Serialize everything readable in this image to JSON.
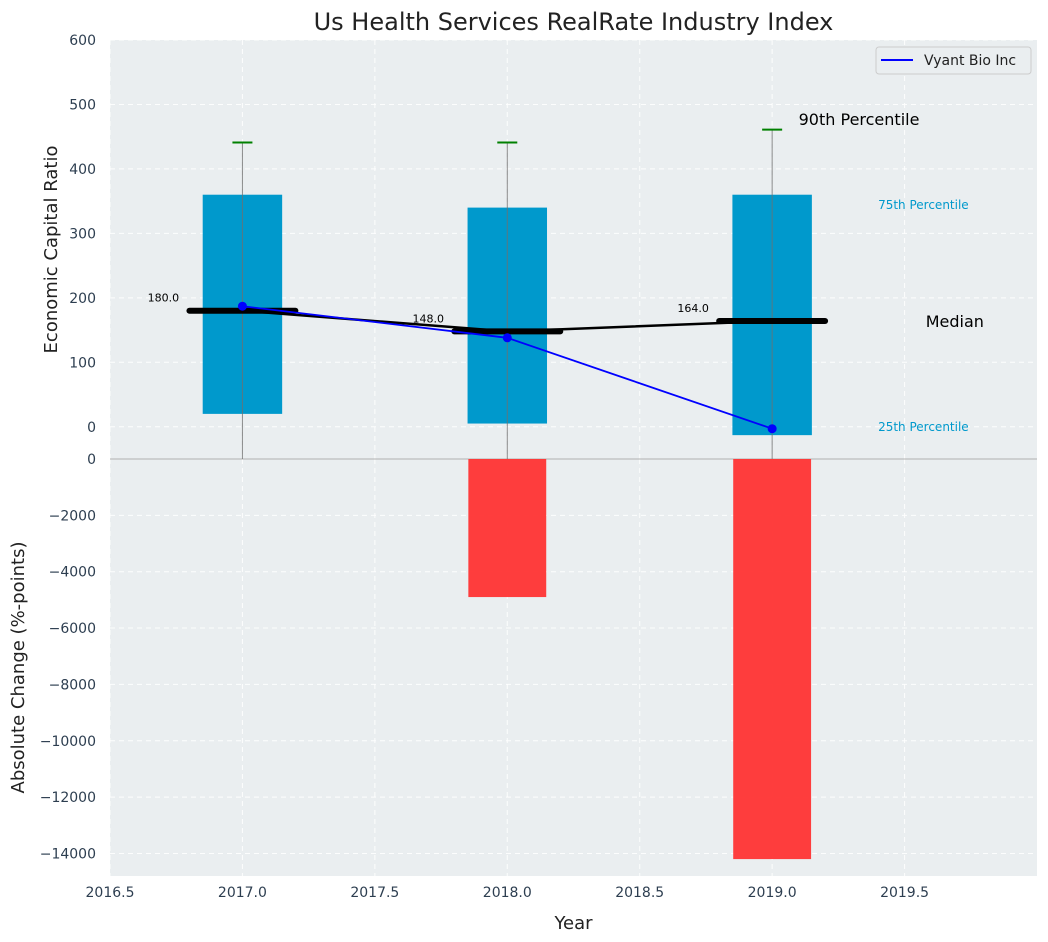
{
  "chart_data": {
    "type": "bar",
    "title": "Us Health Services RealRate Industry Index",
    "xlabel": "Year",
    "x_ticks": [
      "2016.5",
      "2017.0",
      "2017.5",
      "2018.0",
      "2018.5",
      "2019.0",
      "2019.5"
    ],
    "xlim": [
      2016.5,
      2020.0
    ],
    "top_panel": {
      "ylabel": "Economic Capital Ratio",
      "ylim": [
        -50,
        600
      ],
      "y_ticks": [
        "0",
        "100",
        "200",
        "300",
        "400",
        "500",
        "600"
      ],
      "years": [
        2017,
        2018,
        2019
      ],
      "p25": [
        20,
        5,
        -13
      ],
      "p75": [
        360,
        340,
        360
      ],
      "p90": [
        441,
        441,
        461
      ],
      "median": [
        180,
        148,
        164
      ],
      "median_labels": [
        "180.0",
        "148.0",
        "164.0"
      ],
      "series": [
        {
          "name": "Vyant Bio Inc",
          "values": [
            187,
            138,
            -3
          ],
          "color": "#0000ff"
        }
      ],
      "annotations": {
        "p90": "90th Percentile",
        "p75": "75th Percentile",
        "median": "Median",
        "p25": "25th Percentile"
      }
    },
    "bottom_panel": {
      "ylabel": "Absolute Change (%-points)",
      "ylim": [
        -14800,
        0
      ],
      "y_ticks": [
        "0",
        "−2000",
        "−4000",
        "−6000",
        "−8000",
        "−10000",
        "−12000",
        "−14000"
      ],
      "years": [
        2017,
        2018,
        2019
      ],
      "values": [
        0,
        -4900,
        -14200
      ]
    },
    "legend_position": "top-right",
    "grid": true,
    "colors": {
      "panel_bg": "#eaeef0",
      "box": "#0099cc",
      "bar_negative": "#ff3333",
      "whisker_cap": "#008000",
      "median_line": "#000000",
      "series": "#0000ff",
      "annotation_percentile": "#0099cc"
    }
  }
}
